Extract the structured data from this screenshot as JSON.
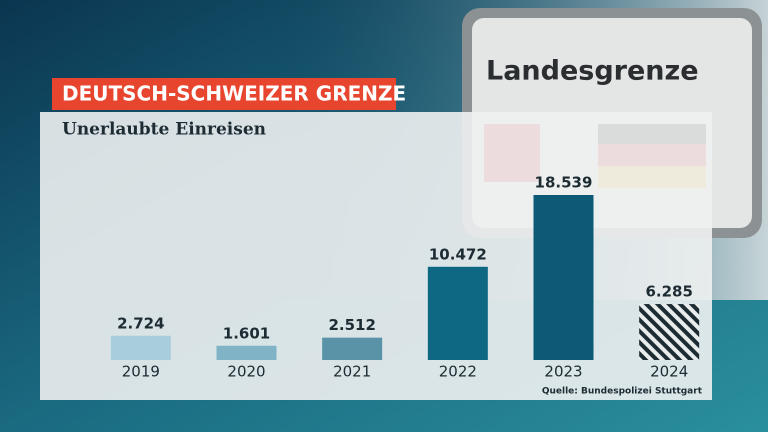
{
  "sign_text": "Landesgrenze",
  "chart_data": {
    "type": "bar",
    "title": "DEUTSCH-SCHWEIZER GRENZE",
    "subtitle": "Unerlaubte Einreisen",
    "source": "Quelle: Bundespolizei Stuttgart",
    "categories": [
      "2019",
      "2020",
      "2021",
      "2022",
      "2023",
      "2024"
    ],
    "values": [
      2724,
      1601,
      2512,
      10472,
      18539,
      6285
    ],
    "value_labels": [
      "2.724",
      "1.601",
      "2.512",
      "10.472",
      "18.539",
      "6.285"
    ],
    "colors": [
      "#a8cddb",
      "#80b3c5",
      "#5a93a8",
      "#0e6883",
      "#0c5a76",
      "#1d2b33"
    ],
    "hatched": [
      false,
      false,
      false,
      false,
      false,
      true
    ]
  }
}
